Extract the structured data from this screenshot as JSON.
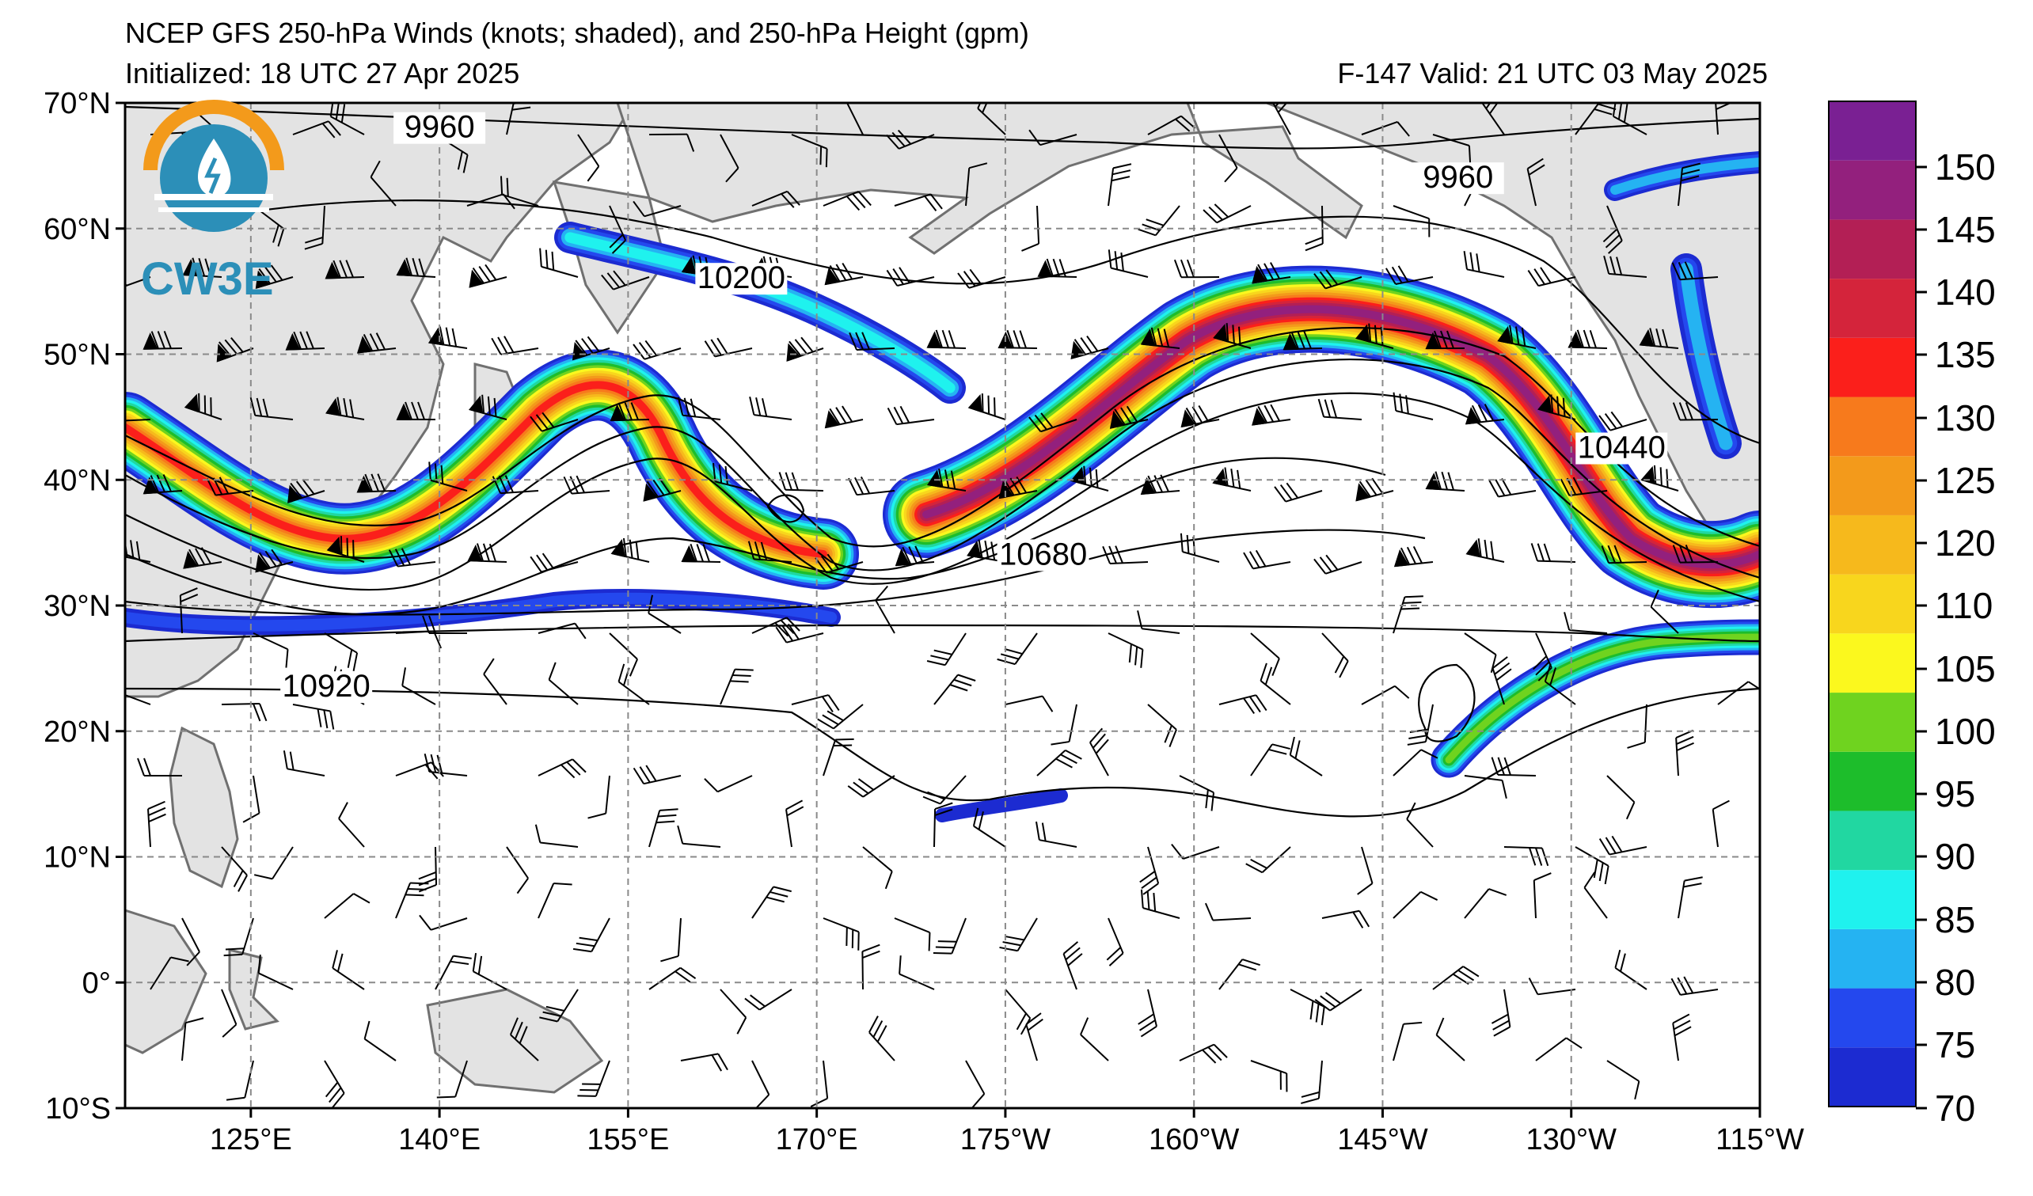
{
  "title": {
    "main": "NCEP GFS 250-hPa Winds (knots; shaded), and 250-hPa Height (gpm)",
    "initialized": "Initialized: 18 UTC 27 Apr 2025",
    "valid": "F-147  Valid: 21 UTC 03 May 2025"
  },
  "logo": {
    "text": "CW3E",
    "icon": "cw3e-water-drop-logo-icon"
  },
  "map": {
    "lat_ticks": [
      {
        "label": "70°N",
        "lat": 70
      },
      {
        "label": "60°N",
        "lat": 60
      },
      {
        "label": "50°N",
        "lat": 50
      },
      {
        "label": "40°N",
        "lat": 40
      },
      {
        "label": "30°N",
        "lat": 30
      },
      {
        "label": "20°N",
        "lat": 20
      },
      {
        "label": "10°N",
        "lat": 10
      },
      {
        "label": "0°",
        "lat": 0
      },
      {
        "label": "10°S",
        "lat": -10
      }
    ],
    "lon_ticks": [
      {
        "label": "125°E",
        "lon": 125
      },
      {
        "label": "140°E",
        "lon": 140
      },
      {
        "label": "155°E",
        "lon": 155
      },
      {
        "label": "170°E",
        "lon": 170
      },
      {
        "label": "175°W",
        "lon": 185
      },
      {
        "label": "160°W",
        "lon": 200
      },
      {
        "label": "145°W",
        "lon": 215
      },
      {
        "label": "130°W",
        "lon": 230
      },
      {
        "label": "115°W",
        "lon": 245
      }
    ],
    "lon_range": [
      115,
      245
    ],
    "lat_range": [
      -10,
      70
    ],
    "contour_labels": [
      {
        "text": "9960",
        "lon": 140,
        "lat": 67.5
      },
      {
        "text": "9960",
        "lon": 221,
        "lat": 63.5
      },
      {
        "text": "10200",
        "lon": 164,
        "lat": 55.5
      },
      {
        "text": "10440",
        "lon": 234,
        "lat": 42
      },
      {
        "text": "10680",
        "lon": 188,
        "lat": 33.5
      },
      {
        "text": "10920",
        "lon": 131,
        "lat": 23
      }
    ],
    "colors": {
      "land": "#e3e3e3",
      "coast": "#707070",
      "grid": "#8a8a8a"
    }
  },
  "colorbar": {
    "levels": [
      70,
      75,
      80,
      85,
      90,
      95,
      100,
      105,
      110,
      115,
      120,
      125,
      130,
      135,
      140,
      145,
      150,
      155
    ],
    "labels": [
      "70",
      "75",
      "80",
      "85",
      "90",
      "95",
      "100",
      "105",
      "110",
      "120",
      "125",
      "130",
      "135",
      "140",
      "145",
      "150"
    ],
    "colors": [
      "#1c2bd1",
      "#2448ee",
      "#25b3f2",
      "#1ff2ee",
      "#21d7a1",
      "#1dbd2b",
      "#6fd31f",
      "#fbf81e",
      "#f8d61d",
      "#f6b91c",
      "#f39a1b",
      "#f77a1c",
      "#fb1f1b",
      "#d4243b",
      "#b31f55",
      "#93207d",
      "#7a2093"
    ]
  }
}
